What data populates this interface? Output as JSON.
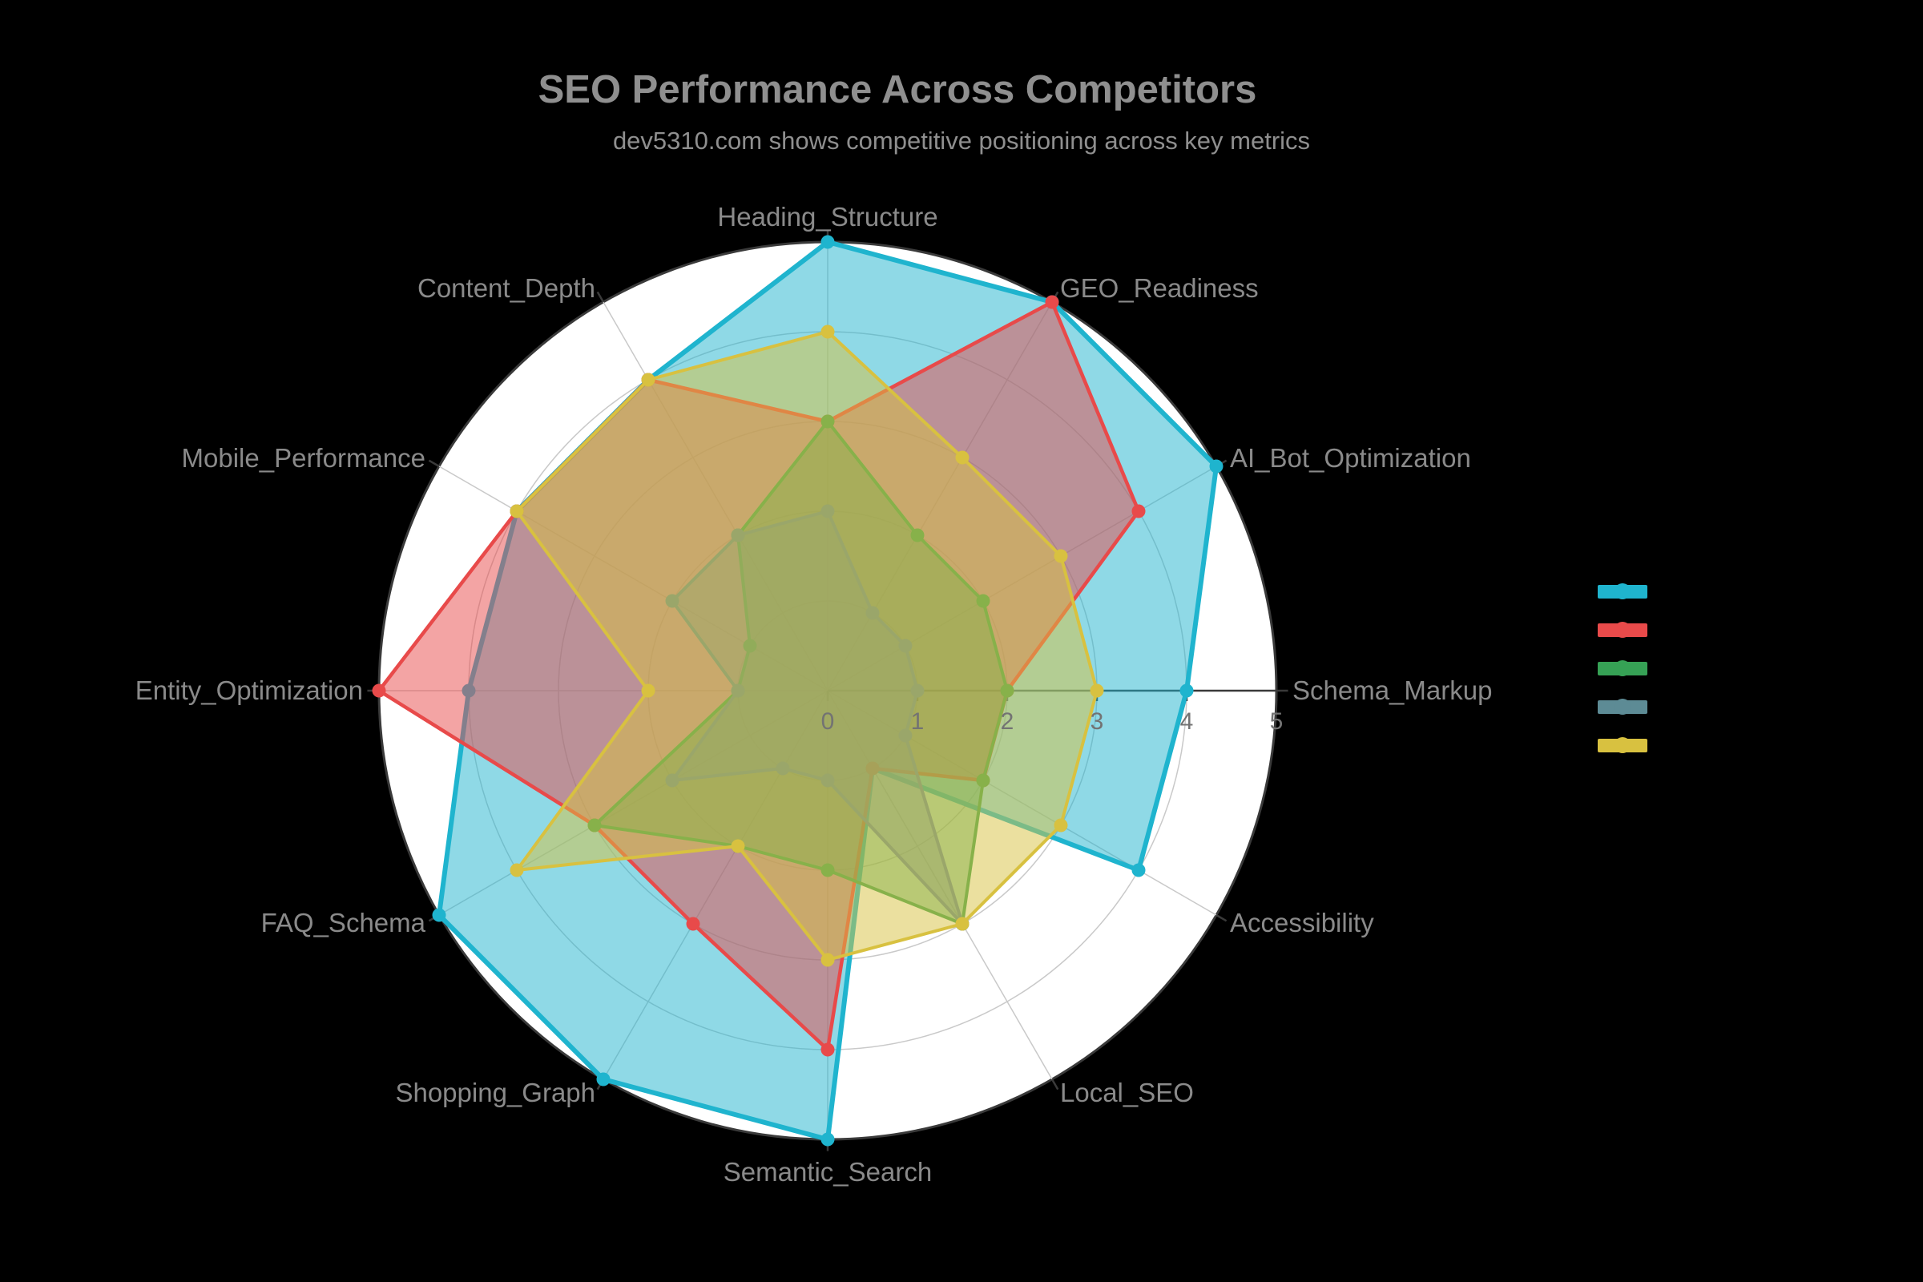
{
  "page": {
    "background": "#000000"
  },
  "header": {
    "title": "SEO Performance Across Competitors",
    "subtitle": "dev5310.com shows competitive positioning across key metrics"
  },
  "chart_data": {
    "type": "radar",
    "title": "SEO Performance Across Competitors",
    "subtitle": "dev5310.com shows competitive positioning across key metrics",
    "categories": [
      "Heading_Structure",
      "GEO_Readiness",
      "AI_Bot_Optimization",
      "Schema_Markup",
      "Accessibility",
      "Local_SEO",
      "Semantic_Search",
      "Shopping_Graph",
      "FAQ_Schema",
      "Entity_Optimization",
      "Mobile_Performance",
      "Content_Depth"
    ],
    "r_axis": {
      "min": 0,
      "max": 5,
      "ticks": [
        0,
        1,
        2,
        3,
        4,
        5
      ]
    },
    "grid": "on",
    "legend": {
      "position": "right",
      "labels_visible": false
    },
    "series": [
      {
        "id": "series-cyan",
        "label": "",
        "color": "#1fb4ce",
        "line_width": 6,
        "values": [
          5,
          5,
          5,
          4,
          4,
          1,
          5,
          5,
          5,
          4,
          4,
          4
        ]
      },
      {
        "id": "series-red",
        "label": "",
        "color": "#e84a4a",
        "line_width": 4.5,
        "values": [
          3,
          5,
          4,
          2,
          2,
          1,
          4,
          3,
          3,
          5,
          4,
          4
        ]
      },
      {
        "id": "series-green",
        "label": "",
        "color": "#36a155",
        "line_width": 4,
        "values": [
          3,
          2,
          2,
          2,
          2,
          3,
          2,
          2,
          3,
          1,
          1,
          2
        ]
      },
      {
        "id": "series-teal",
        "label": "",
        "color": "#5d8b95",
        "line_width": 4,
        "values": [
          2,
          1,
          1,
          1,
          1,
          3,
          1,
          1,
          2,
          1,
          2,
          2
        ]
      },
      {
        "id": "series-yellow",
        "label": "",
        "color": "#d8c140",
        "line_width": 4,
        "values": [
          4,
          3,
          3,
          3,
          3,
          3,
          3,
          2,
          4,
          2,
          4,
          4
        ]
      }
    ],
    "style": {
      "polar_background": "#ffffff",
      "outer_ring_color": "#3a3a3a",
      "grid_color": "#c9c9c9",
      "axis_line_color": "#3a3a3a",
      "tick_label_color": "#737373",
      "category_label_color": "#8a8a8a",
      "fill_opacity": 0.5
    }
  }
}
